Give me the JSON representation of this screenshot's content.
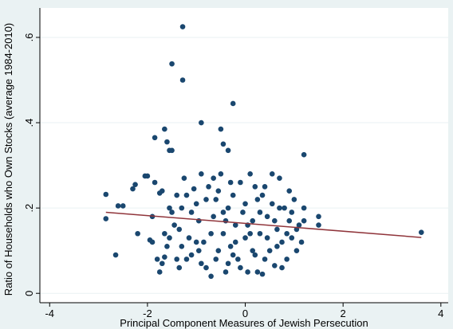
{
  "chart_data": {
    "type": "scatter",
    "xlabel": "Principal Component Measures of Jewish Persecution",
    "ylabel": "Ratio of Households who Own Stocks (average 1984-2010)",
    "xlim": [
      -4.2,
      4.15
    ],
    "ylim": [
      -0.022,
      0.669
    ],
    "xticks": [
      -4,
      -2,
      0,
      2,
      4
    ],
    "yticks": [
      0,
      {
        "value": 0.2,
        "label": ".2"
      },
      {
        "value": 0.4,
        "label": ".4"
      },
      {
        "value": 0.6,
        "label": ".6"
      }
    ],
    "grid": true,
    "series": [
      {
        "mark": "scatter",
        "color": "#1a476f",
        "x": [
          -1.28,
          -1.5,
          -1.28,
          -0.25,
          -0.9,
          -2.85,
          -2.85,
          -2.6,
          -2.5,
          -2.65,
          -2.3,
          -2.25,
          -2.2,
          -2.05,
          -2.0,
          -1.95,
          -1.9,
          -1.85,
          -1.75,
          -1.65,
          -1.6,
          -1.55,
          -1.5,
          -0.5,
          -0.45,
          -0.35,
          1.2,
          3.6,
          1.5,
          1.5,
          1.2,
          1.15,
          -1.8,
          -1.75,
          -1.7,
          -1.65,
          -1.6,
          -1.55,
          -1.5,
          -1.45,
          -1.4,
          -1.35,
          -1.3,
          -1.25,
          -1.2,
          -1.15,
          -1.1,
          -1.05,
          -1.0,
          -0.95,
          -0.9,
          -0.85,
          -0.8,
          -0.75,
          -0.7,
          -0.65,
          -0.6,
          -0.55,
          -0.5,
          -0.45,
          -0.4,
          -0.35,
          -0.3,
          -0.25,
          -0.2,
          -0.15,
          -0.1,
          -0.05,
          0.0,
          0.05,
          0.1,
          0.15,
          0.2,
          0.25,
          0.3,
          0.35,
          0.4,
          0.45,
          0.5,
          0.55,
          0.6,
          0.65,
          0.7,
          0.75,
          0.8,
          0.85,
          0.9,
          0.95,
          1.0,
          1.05,
          1.1,
          -1.9,
          -1.85,
          -1.7,
          -1.55,
          -1.4,
          -1.35,
          -1.2,
          -1.1,
          -0.95,
          -0.8,
          -0.7,
          -0.6,
          -0.55,
          -0.45,
          -0.35,
          -0.3,
          -0.2,
          -0.1,
          0.0,
          0.05,
          0.15,
          0.2,
          0.3,
          0.4,
          0.45,
          0.55,
          0.6,
          0.7,
          0.75,
          0.85,
          0.95,
          1.05,
          1.2,
          -1.65,
          -1.3,
          -1.0,
          -0.65,
          -0.25,
          0.1,
          0.35,
          0.65,
          0.9,
          -0.9,
          -0.4,
          0.25
        ],
        "values": [
          0.625,
          0.538,
          0.5,
          0.445,
          0.4,
          0.232,
          0.175,
          0.205,
          0.205,
          0.09,
          0.245,
          0.255,
          0.14,
          0.275,
          0.275,
          0.125,
          0.12,
          0.365,
          0.235,
          0.385,
          0.355,
          0.335,
          0.335,
          0.385,
          0.35,
          0.335,
          0.325,
          0.143,
          0.18,
          0.16,
          0.2,
          0.12,
          0.08,
          0.05,
          0.07,
          0.085,
          0.11,
          0.2,
          0.19,
          0.16,
          0.08,
          0.06,
          0.11,
          0.27,
          0.23,
          0.13,
          0.09,
          0.245,
          0.21,
          0.17,
          0.28,
          0.12,
          0.06,
          0.25,
          0.04,
          0.18,
          0.22,
          0.1,
          0.28,
          0.14,
          0.05,
          0.2,
          0.11,
          0.23,
          0.16,
          0.08,
          0.26,
          0.19,
          0.13,
          0.05,
          0.28,
          0.17,
          0.09,
          0.22,
          0.14,
          0.045,
          0.25,
          0.18,
          0.1,
          0.21,
          0.065,
          0.15,
          0.27,
          0.12,
          0.2,
          0.08,
          0.17,
          0.13,
          0.22,
          0.1,
          0.16,
          0.18,
          0.26,
          0.24,
          0.13,
          0.23,
          0.15,
          0.08,
          0.19,
          0.1,
          0.22,
          0.14,
          0.08,
          0.24,
          0.19,
          0.07,
          0.26,
          0.12,
          0.06,
          0.21,
          0.16,
          0.1,
          0.25,
          0.19,
          0.08,
          0.13,
          0.28,
          0.17,
          0.2,
          0.06,
          0.14,
          0.19,
          0.15,
          0.17,
          0.14,
          0.2,
          0.12,
          0.27,
          0.09,
          0.14,
          0.23,
          0.11,
          0.24,
          0.07,
          0.17,
          0.05
        ]
      },
      {
        "mark": "line",
        "color": "#90353b",
        "x": [
          -2.85,
          3.6
        ],
        "values": [
          0.19,
          0.131
        ]
      }
    ]
  }
}
